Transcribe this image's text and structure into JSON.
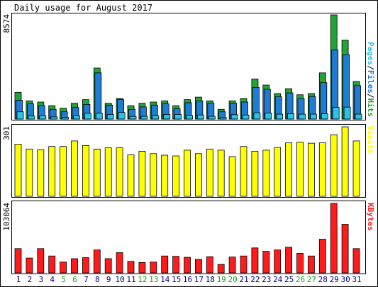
{
  "title": "Daily usage for August 2017",
  "colors": {
    "background": "#ffffff",
    "panel": "#ffffff",
    "border": "#000000",
    "hits": "#22a33a",
    "files": "#1e7cd6",
    "pages": "#2cc2e8",
    "visits": "#ffff00",
    "kbytes": "#ff1b1b",
    "weekday_label": "#000080",
    "weekend_label": "#20a020"
  },
  "chart_data": [
    {
      "type": "bar",
      "name": "hits-files-pages",
      "legend": [
        "Pages",
        "Files",
        "Hits"
      ],
      "ymax_label": "8574",
      "ylim": [
        0,
        8574
      ],
      "days": [
        "1",
        "2",
        "3",
        "4",
        "5",
        "6",
        "7",
        "8",
        "9",
        "10",
        "11",
        "12",
        "13",
        "14",
        "15",
        "16",
        "17",
        "18",
        "19",
        "20",
        "21",
        "22",
        "23",
        "24",
        "25",
        "26",
        "27",
        "28",
        "29",
        "30",
        "31"
      ],
      "weekend": [
        5,
        6,
        12,
        13,
        19,
        20,
        26,
        27
      ],
      "series": [
        {
          "name": "Hits",
          "values": [
            2200,
            1500,
            1400,
            1100,
            900,
            1300,
            1600,
            4200,
            1300,
            1700,
            1100,
            1300,
            1400,
            1500,
            1100,
            1600,
            1800,
            1500,
            800,
            1500,
            1700,
            3300,
            2800,
            2100,
            2500,
            2000,
            2100,
            3800,
            8574,
            6500,
            3100
          ]
        },
        {
          "name": "Files",
          "values": [
            1550,
            1250,
            1100,
            800,
            600,
            950,
            1200,
            3800,
            1150,
            1600,
            800,
            1000,
            1150,
            1250,
            850,
            1350,
            1500,
            1300,
            600,
            1300,
            1400,
            2600,
            2450,
            1850,
            2150,
            1700,
            1850,
            3000,
            5700,
            5300,
            2750
          ]
        },
        {
          "name": "Pages",
          "values": [
            600,
            250,
            280,
            180,
            140,
            260,
            470,
            480,
            380,
            540,
            220,
            230,
            270,
            380,
            380,
            300,
            340,
            230,
            120,
            360,
            330,
            520,
            500,
            400,
            430,
            400,
            410,
            430,
            960,
            980,
            400
          ]
        }
      ]
    },
    {
      "type": "bar",
      "name": "visits",
      "legend": [
        "Visits"
      ],
      "ymax_label": "301",
      "ylim": [
        0,
        301
      ],
      "series": [
        {
          "name": "Visits",
          "values": [
            226,
            205,
            202,
            216,
            216,
            240,
            220,
            205,
            210,
            210,
            180,
            195,
            185,
            178,
            175,
            200,
            185,
            205,
            200,
            172,
            216,
            195,
            200,
            212,
            232,
            235,
            230,
            232,
            267,
            301,
            240
          ]
        }
      ]
    },
    {
      "type": "bar",
      "name": "kbytes",
      "legend": [
        "KBytes"
      ],
      "ymax_label": "103064",
      "ylim": [
        0,
        103064
      ],
      "series": [
        {
          "name": "KBytes",
          "values": [
            36000,
            22000,
            36000,
            25000,
            16000,
            21000,
            22500,
            34000,
            21000,
            30000,
            17000,
            15500,
            16000,
            25000,
            24500,
            23000,
            20000,
            24000,
            12500,
            23500,
            25000,
            37000,
            32000,
            34000,
            38000,
            29000,
            25000,
            50000,
            103064,
            72000,
            36000
          ]
        }
      ]
    }
  ]
}
